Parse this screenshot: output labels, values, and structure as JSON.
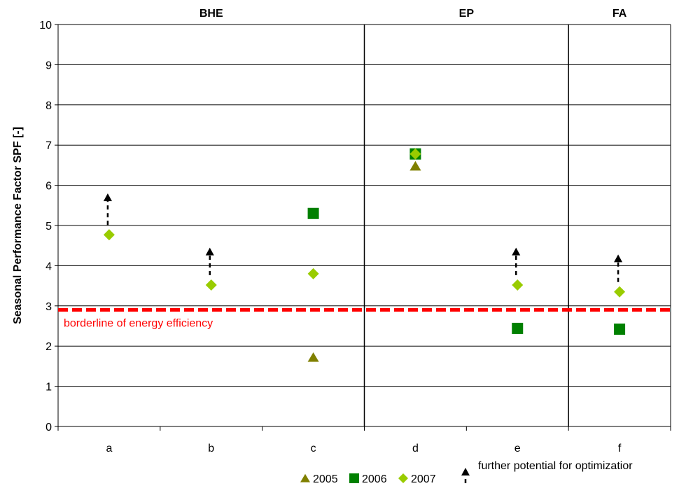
{
  "chart_data": {
    "type": "scatter",
    "ylabel": "Seasonal Performance Factor SPF [-]",
    "xlabel": "",
    "ylim": [
      0,
      10
    ],
    "yticks": [
      0,
      1,
      2,
      3,
      4,
      5,
      6,
      7,
      8,
      9,
      10
    ],
    "categories": [
      "a",
      "b",
      "c",
      "d",
      "e",
      "f"
    ],
    "groups": [
      {
        "label": "BHE",
        "categories": [
          "a",
          "b",
          "c"
        ]
      },
      {
        "label": "EP",
        "categories": [
          "d",
          "e"
        ]
      },
      {
        "label": "FA",
        "categories": [
          "f"
        ]
      }
    ],
    "series": [
      {
        "name": "2005",
        "marker": "triangle",
        "color": "#808000",
        "values": [
          null,
          null,
          1.72,
          6.48,
          null,
          null
        ]
      },
      {
        "name": "2006",
        "marker": "square",
        "color": "#008000",
        "values": [
          null,
          null,
          5.3,
          6.78,
          2.44,
          2.42
        ]
      },
      {
        "name": "2007",
        "marker": "diamond",
        "color": "#99cc00",
        "values": [
          4.77,
          3.52,
          3.8,
          6.78,
          3.52,
          3.35
        ]
      }
    ],
    "optimization_arrows": [
      {
        "category": "a",
        "from": 4.77,
        "to": 5.8
      },
      {
        "category": "b",
        "from": 3.52,
        "to": 4.45
      },
      {
        "category": "e",
        "from": 3.52,
        "to": 4.45
      },
      {
        "category": "f",
        "from": 3.35,
        "to": 4.28
      }
    ],
    "threshold": {
      "value": 2.9,
      "label": "borderline of energy efficiency",
      "color": "#ff0000"
    },
    "legend": {
      "position": "bottom-right",
      "arrow_label": "further potential for optimizatior"
    },
    "grid": true
  }
}
